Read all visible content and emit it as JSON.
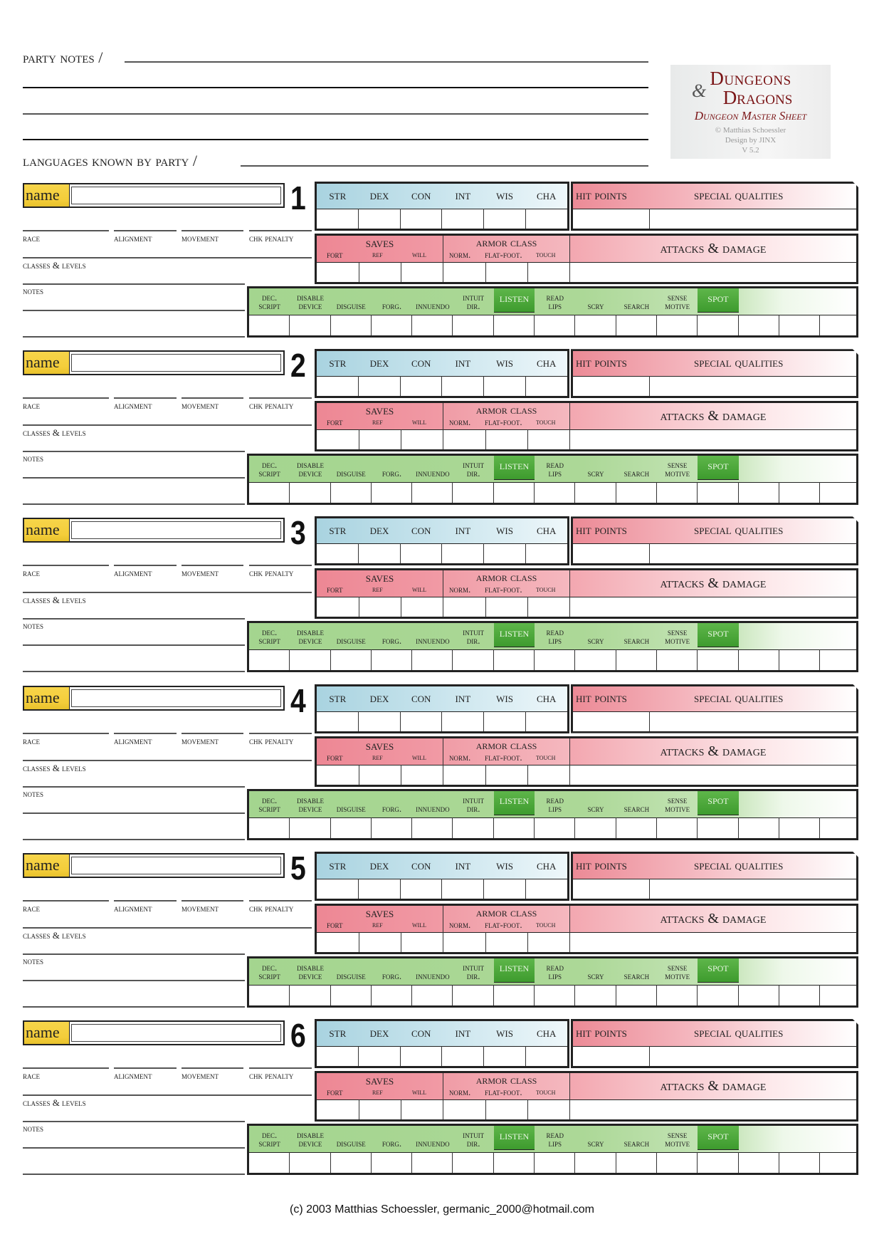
{
  "header": {
    "party_notes_label": "party notes /",
    "languages_label": "languages known by party /"
  },
  "logo": {
    "line1": "Dungeons",
    "ampersand": "&",
    "line2": "Dragons",
    "subtitle": "Dungeon Master Sheet",
    "credit": "© Matthias Schoessler",
    "design": "Design by JINX",
    "version": "V 5.2"
  },
  "labels": {
    "name": "name",
    "race": "race",
    "alignment": "alignment",
    "movement": "movement",
    "chk_penalty": "chk penalty",
    "classes_levels": "classes & levels",
    "notes": "notes",
    "stats": [
      "str",
      "dex",
      "con",
      "int",
      "wis",
      "cha"
    ],
    "hit_points": "hit points",
    "special_qualities": "special qualities",
    "saves": "saves",
    "saves_sub": [
      "fort",
      "ref",
      "will"
    ],
    "armor_class": "armor class",
    "ac_sub": [
      "norm.",
      "flat-foot.",
      "touch"
    ],
    "attacks_damage": "attacks & damage",
    "skills": [
      {
        "l1": "dec.",
        "l2": "script"
      },
      {
        "l1": "disable",
        "l2": "device"
      },
      {
        "l1": "",
        "l2": "disguise"
      },
      {
        "l1": "",
        "l2": "forg."
      },
      {
        "l1": "",
        "l2": "innuendo"
      },
      {
        "l1": "intuit",
        "l2": "dir."
      },
      {
        "l1": "",
        "l2": "listen",
        "highlight": true
      },
      {
        "l1": "read",
        "l2": "lips"
      },
      {
        "l1": "",
        "l2": "scry"
      },
      {
        "l1": "",
        "l2": "search"
      },
      {
        "l1": "sense",
        "l2": "motive"
      },
      {
        "l1": "",
        "l2": "spot",
        "highlight": true
      },
      {
        "l1": "",
        "l2": ""
      },
      {
        "l1": "",
        "l2": ""
      },
      {
        "l1": "",
        "l2": ""
      }
    ]
  },
  "characters": [
    {
      "number": "1"
    },
    {
      "number": "2"
    },
    {
      "number": "3"
    },
    {
      "number": "4"
    },
    {
      "number": "5"
    },
    {
      "number": "6"
    }
  ],
  "footer": {
    "text": "(c) 2003 Matthias Schoessler,  germanic_2000@hotmail.com"
  },
  "colors": {
    "name_yellow": "#f4cd3a",
    "stats_blue": "#a9d3e0",
    "saves_red": "#ed8794",
    "skills_green": "#a4d58f",
    "highlight_green": "#4aa83a",
    "logo_red": "#7a1416"
  }
}
